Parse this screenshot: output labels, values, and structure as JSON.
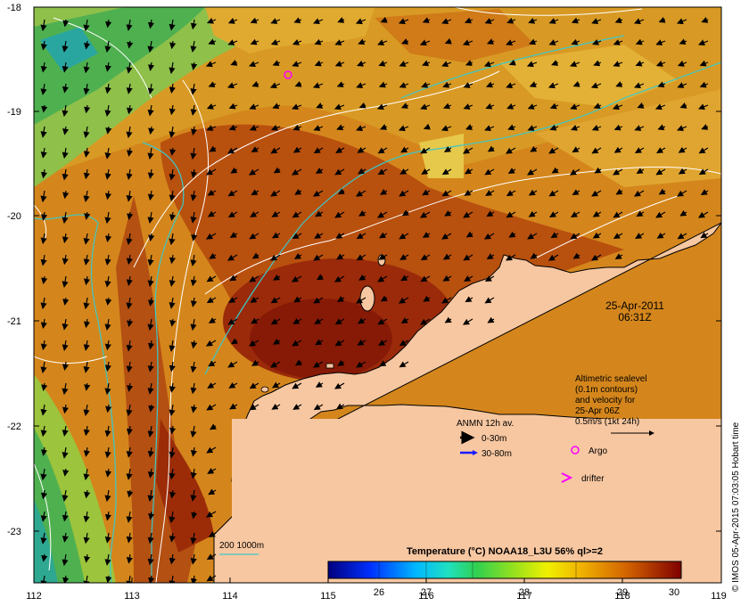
{
  "map": {
    "lon_ticks": [
      "112",
      "113",
      "114",
      "115",
      "116",
      "117",
      "118",
      "119"
    ],
    "lat_ticks": [
      "-18",
      "-19",
      "-20",
      "-21",
      "-22",
      "-23"
    ],
    "date": "25-Apr-2011",
    "time": "06:31Z",
    "sealevel_note": [
      "Altimetric sealevel",
      "(0.1m contours)",
      "and velocity for",
      "25-Apr 06Z",
      "0.5m/s (1kt 24h)"
    ],
    "anmn": {
      "title": "ANMN 12h av.",
      "items": [
        {
          "label": "0-30m",
          "color": "#000000"
        },
        {
          "label": "30-80m",
          "color": "#1a1aff"
        }
      ]
    },
    "argo_label": "Argo",
    "drifter_label": "drifter",
    "isobath_label": "200  1000m",
    "colorbar": {
      "title": "Temperature (°C) NOAA18_L3U 56% ql>=2",
      "ticks": [
        "26",
        "27",
        "28",
        "29",
        "30"
      ]
    },
    "credit": "© IMOS 05-Apr-2015 07:03:05 Hobart time",
    "colors": {
      "land": "#f7c7a1",
      "isobath": "#3cc8c8",
      "contour": "#ffffff",
      "argo": "#ff00ff",
      "drifter": "#ff00ff"
    }
  }
}
